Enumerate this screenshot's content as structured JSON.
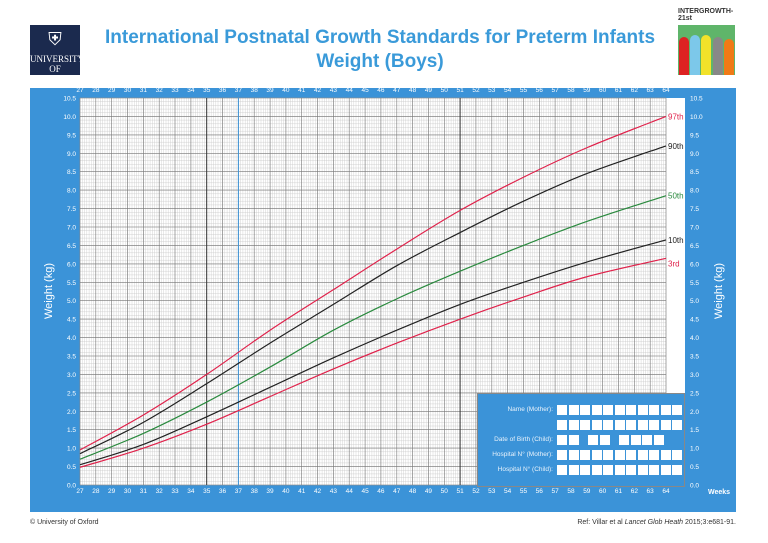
{
  "header": {
    "title_line1": "International Postnatal Growth Standards for Preterm Infants",
    "title_line2": "Weight (Boys)",
    "oxford_logo_text": "UNIVERSITY OF OXFORD",
    "intergrowth_label": "INTERGROWTH-21st"
  },
  "form": {
    "name_mother": "Name (Mother):",
    "dob_child": "Date of Birth (Child):",
    "hospital_mother": "Hospital N° (Mother):",
    "hospital_child": "Hospital N° (Child):"
  },
  "footer": {
    "copyright": "© University of Oxford",
    "ref_prefix": "Ref: Villar et al ",
    "ref_journal": "Lancet Glob Heath",
    "ref_suffix": " 2015;3:e681-91."
  },
  "chart_data": {
    "type": "line",
    "title": "International Postnatal Growth Standards for Preterm Infants Weight (Boys)",
    "xlabel": "Weeks",
    "ylabel": "Weight (kg)",
    "xlim": [
      27,
      64
    ],
    "ylim": [
      0,
      10.5
    ],
    "grid": true,
    "x_ticks": [
      27,
      28,
      29,
      30,
      31,
      32,
      33,
      34,
      35,
      36,
      37,
      38,
      39,
      40,
      41,
      42,
      43,
      44,
      45,
      46,
      47,
      48,
      49,
      50,
      51,
      52,
      53,
      54,
      55,
      56,
      57,
      58,
      59,
      60,
      61,
      62,
      63,
      64
    ],
    "y_ticks": [
      "0.0",
      "0.5",
      "1.0",
      "1.5",
      "2.0",
      "2.5",
      "3.0",
      "3.5",
      "4.0",
      "4.5",
      "5.0",
      "5.5",
      "6.0",
      "6.5",
      "7.0",
      "7.5",
      "8.0",
      "8.5",
      "9.0",
      "9.5",
      "10.0",
      "10.5"
    ],
    "x": [
      27,
      31,
      35,
      39,
      43,
      47,
      51,
      55,
      59,
      64
    ],
    "series": [
      {
        "name": "97th",
        "color": "#e0224b",
        "values": [
          0.95,
          1.9,
          3.0,
          4.2,
          5.3,
          6.4,
          7.45,
          8.35,
          9.15,
          10.0
        ]
      },
      {
        "name": "90th",
        "color": "#222222",
        "values": [
          0.85,
          1.7,
          2.75,
          3.85,
          4.9,
          5.95,
          6.85,
          7.7,
          8.45,
          9.2
        ]
      },
      {
        "name": "50th",
        "color": "#2a8a3e",
        "values": [
          0.7,
          1.4,
          2.25,
          3.2,
          4.2,
          5.05,
          5.8,
          6.5,
          7.15,
          7.85
        ]
      },
      {
        "name": "10th",
        "color": "#222222",
        "values": [
          0.55,
          1.1,
          1.85,
          2.65,
          3.45,
          4.2,
          4.9,
          5.5,
          6.05,
          6.65
        ]
      },
      {
        "name": "3rd",
        "color": "#e0224b",
        "values": [
          0.48,
          1.0,
          1.65,
          2.4,
          3.15,
          3.85,
          4.5,
          5.1,
          5.65,
          6.15
        ]
      }
    ]
  }
}
